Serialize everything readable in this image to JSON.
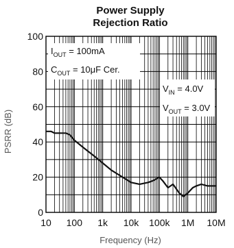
{
  "chart_data": {
    "type": "line",
    "title": [
      "Power Supply",
      "Rejection Ratio"
    ],
    "xlabel": "Frequency (Hz)",
    "ylabel": "PSRR (dB)",
    "x_scale": "log",
    "xlim": [
      10,
      10000000
    ],
    "ylim": [
      0,
      100
    ],
    "grid": true,
    "x_ticks": [
      {
        "value": 10,
        "label": "10"
      },
      {
        "value": 100,
        "label": "100"
      },
      {
        "value": 1000,
        "label": "1k"
      },
      {
        "value": 10000,
        "label": "10k"
      },
      {
        "value": 100000,
        "label": "100k"
      },
      {
        "value": 1000000,
        "label": "1M"
      },
      {
        "value": 10000000,
        "label": "10M"
      }
    ],
    "y_ticks": [
      {
        "value": 0,
        "label": "0"
      },
      {
        "value": 20,
        "label": "20"
      },
      {
        "value": 40,
        "label": "40"
      },
      {
        "value": 60,
        "label": "60"
      },
      {
        "value": 80,
        "label": "80"
      },
      {
        "value": 100,
        "label": "100"
      }
    ],
    "annotations": {
      "left": [
        {
          "main": "I",
          "sub": "OUT",
          "rest": " = 100mA"
        },
        {
          "main": "C",
          "sub": "OUT",
          "rest": " = 10μF Cer."
        }
      ],
      "right": [
        {
          "main": "V",
          "sub": "IN",
          "rest": " = 4.0V"
        },
        {
          "main": "V",
          "sub": "OUT",
          "rest": " = 3.0V"
        }
      ]
    },
    "series": [
      {
        "x": [
          10,
          15,
          20,
          30,
          50,
          70,
          100,
          200,
          500,
          1000,
          2000,
          5000,
          10000,
          20000,
          40000,
          60000,
          100000,
          130000,
          200000,
          300000,
          500000,
          700000,
          1000000,
          1500000,
          2000000,
          3000000,
          5000000,
          10000000
        ],
        "y": [
          46,
          46,
          45,
          45,
          45,
          44,
          41,
          37,
          32,
          28,
          24,
          20,
          17,
          16,
          17,
          18,
          20,
          18,
          14,
          16,
          11,
          9,
          11,
          14,
          15,
          16,
          15,
          15
        ]
      }
    ]
  },
  "colors": {
    "line": "#111111",
    "grid": "#000000",
    "background": "#ffffff"
  }
}
